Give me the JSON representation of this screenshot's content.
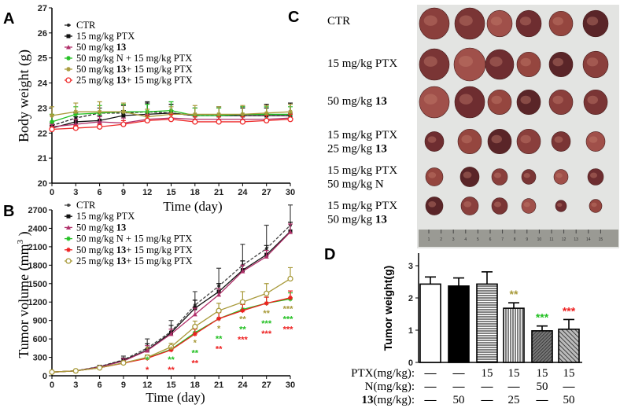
{
  "panels": {
    "a": "A",
    "b": "B",
    "c": "C",
    "d": "D"
  },
  "chart_data": [
    {
      "id": "A",
      "type": "line",
      "xlabel": "Time (day)",
      "ylabel": "Body weight (g)",
      "x": [
        0,
        3,
        6,
        9,
        12,
        15,
        18,
        21,
        24,
        27,
        30
      ],
      "xlim": [
        0,
        30
      ],
      "ylim": [
        20,
        27
      ],
      "yticks": [
        20,
        21,
        22,
        23,
        24,
        25,
        26,
        27
      ],
      "legend_position": "top-left",
      "series": [
        {
          "name": "CTR",
          "color": "#222222",
          "dash": true,
          "marker": "dot",
          "values": [
            22.3,
            22.6,
            22.8,
            22.8,
            22.85,
            22.8,
            22.7,
            22.7,
            22.7,
            22.7,
            22.7
          ],
          "error": [
            0.1,
            0.2,
            0.2,
            0.3,
            0.4,
            0.35,
            0.3,
            0.35,
            0.35,
            0.45,
            0.5
          ]
        },
        {
          "name": "15 mg/kg PTX",
          "color": "#111111",
          "marker": "square",
          "values": [
            22.2,
            22.45,
            22.5,
            22.7,
            22.75,
            22.8,
            22.7,
            22.7,
            22.7,
            22.7,
            22.7
          ],
          "error": [
            0.1,
            0.2,
            0.2,
            0.2,
            0.45,
            0.35,
            0.3,
            0.3,
            0.3,
            0.3,
            0.5
          ]
        },
        {
          "name_prefix": "50 mg/kg ",
          "name_bold": "13",
          "name_suffix": "",
          "color": "#b0306a",
          "marker": "triangle",
          "values": [
            22.25,
            22.35,
            22.45,
            22.4,
            22.55,
            22.6,
            22.55,
            22.55,
            22.55,
            22.55,
            22.6
          ],
          "error": [
            0.1,
            0.2,
            0.2,
            0.2,
            0.2,
            0.2,
            0.2,
            0.2,
            0.2,
            0.2,
            0.2
          ]
        },
        {
          "name": "50 mg/kg N + 15 mg/kg PTX",
          "color": "#22c022",
          "marker": "star",
          "values": [
            22.45,
            22.75,
            22.8,
            22.85,
            22.85,
            22.9,
            22.7,
            22.7,
            22.75,
            22.75,
            22.75
          ],
          "error": [
            0.3,
            0.3,
            0.3,
            0.3,
            0.3,
            0.35,
            0.3,
            0.3,
            0.3,
            0.3,
            0.3
          ]
        },
        {
          "name_prefix": "50 mg/kg ",
          "name_bold": "13",
          "name_suffix": "+ 15 mg/kg PTX",
          "color": "#a89a3a",
          "marker": "star",
          "values": [
            22.7,
            22.85,
            22.85,
            22.85,
            22.65,
            22.75,
            22.75,
            22.75,
            22.75,
            22.8,
            22.85
          ],
          "error": [
            0.35,
            0.35,
            0.4,
            0.35,
            0.3,
            0.3,
            0.35,
            0.3,
            0.35,
            0.3,
            0.3
          ]
        },
        {
          "name_prefix": "25 mg/kg ",
          "name_bold": "13",
          "name_suffix": "+ 15 mg/kg PTX",
          "color": "#ee2a2a",
          "marker": "circle",
          "values": [
            22.15,
            22.2,
            22.25,
            22.35,
            22.5,
            22.55,
            22.45,
            22.45,
            22.45,
            22.5,
            22.55
          ],
          "error": [
            0.1,
            0.1,
            0.1,
            0.15,
            0.2,
            0.2,
            0.2,
            0.2,
            0.2,
            0.2,
            0.2
          ]
        }
      ]
    },
    {
      "id": "B",
      "type": "line",
      "xlabel": "Time (day)",
      "ylabel": "Tumor volume (mm",
      "ylabel_sup": "3",
      "ylabel_end": ")",
      "x": [
        0,
        3,
        6,
        9,
        12,
        15,
        18,
        21,
        24,
        27,
        30
      ],
      "xlim": [
        0,
        30
      ],
      "ylim": [
        0,
        2700
      ],
      "yticks": [
        0,
        300,
        600,
        900,
        1200,
        1500,
        1800,
        2100,
        2400,
        2700
      ],
      "legend_position": "top-left",
      "series": [
        {
          "name": "CTR",
          "color": "#444444",
          "dash": true,
          "marker": "dot",
          "values": [
            60,
            80,
            150,
            260,
            450,
            720,
            1150,
            1460,
            1800,
            2070,
            2450
          ],
          "error": [
            0,
            0,
            20,
            60,
            150,
            180,
            220,
            290,
            340,
            380,
            330
          ]
        },
        {
          "name": "15 mg/kg PTX",
          "color": "#111111",
          "marker": "square",
          "values": [
            60,
            80,
            145,
            250,
            420,
            700,
            1100,
            1370,
            1720,
            1970,
            2350
          ],
          "error": [
            0,
            0,
            20,
            40,
            100,
            120,
            130,
            130,
            150,
            150,
            150
          ]
        },
        {
          "name_prefix": "50 mg/kg ",
          "name_bold": "13",
          "name_suffix": "",
          "color": "#b0306a",
          "marker": "triangle",
          "values": [
            60,
            80,
            140,
            240,
            410,
            680,
            1000,
            1320,
            1700,
            1940,
            2340
          ],
          "error": [
            0,
            0,
            20,
            40,
            80,
            80,
            100,
            100,
            100,
            100,
            130
          ]
        },
        {
          "name": "50 mg/kg N + 15 mg/kg PTX",
          "color": "#22c022",
          "marker": "star",
          "values": [
            60,
            80,
            130,
            210,
            290,
            430,
            700,
            930,
            1080,
            1180,
            1250
          ],
          "error": [
            0,
            0,
            15,
            30,
            40,
            50,
            80,
            100,
            100,
            100,
            100
          ]
        },
        {
          "name_prefix": "50 mg/kg ",
          "name_bold": "13",
          "name_suffix": "+ 15 mg/kg PTX",
          "color": "#ee2020",
          "marker": "star",
          "values": [
            60,
            80,
            130,
            205,
            285,
            420,
            680,
            930,
            1060,
            1180,
            1270
          ],
          "error": [
            0,
            0,
            15,
            30,
            40,
            50,
            80,
            100,
            100,
            100,
            110
          ]
        },
        {
          "name_prefix": "25 mg/kg ",
          "name_bold": "13",
          "name_suffix": "+ 15 mg/kg PTX",
          "color": "#a89a3a",
          "marker": "circle",
          "values": [
            60,
            80,
            130,
            210,
            300,
            470,
            800,
            1060,
            1200,
            1340,
            1580
          ],
          "error": [
            0,
            0,
            15,
            30,
            40,
            60,
            90,
            120,
            170,
            160,
            180
          ]
        }
      ],
      "significance": [
        {
          "x": 12,
          "marks": [
            {
              "text": "*",
              "color": "#a89a3a"
            },
            {
              "text": "*",
              "color": "#22c022"
            },
            {
              "text": "*",
              "color": "#ee2020"
            }
          ]
        },
        {
          "x": 15,
          "marks": [
            {
              "text": "*",
              "color": "#a89a3a"
            },
            {
              "text": "**",
              "color": "#22c022"
            },
            {
              "text": "**",
              "color": "#ee2020"
            }
          ]
        },
        {
          "x": 18,
          "marks": [
            {
              "text": "*",
              "color": "#a89a3a"
            },
            {
              "text": "**",
              "color": "#22c022"
            },
            {
              "text": "**",
              "color": "#ee2020"
            }
          ]
        },
        {
          "x": 21,
          "marks": [
            {
              "text": "*",
              "color": "#a89a3a"
            },
            {
              "text": "**",
              "color": "#22c022"
            },
            {
              "text": "**",
              "color": "#ee2020"
            }
          ]
        },
        {
          "x": 24,
          "marks": [
            {
              "text": "**",
              "color": "#a89a3a"
            },
            {
              "text": "**",
              "color": "#22c022"
            },
            {
              "text": "***",
              "color": "#ee2020"
            }
          ]
        },
        {
          "x": 27,
          "marks": [
            {
              "text": "**",
              "color": "#a89a3a"
            },
            {
              "text": "***",
              "color": "#22c022"
            },
            {
              "text": "***",
              "color": "#ee2020"
            }
          ]
        },
        {
          "x": 30,
          "marks": [
            {
              "text": "***",
              "color": "#a89a3a"
            },
            {
              "text": "***",
              "color": "#22c022"
            },
            {
              "text": "***",
              "color": "#ee2020"
            }
          ]
        }
      ]
    },
    {
      "id": "D",
      "type": "bar",
      "ylabel": "Tumor weight(g)",
      "ylim": [
        0,
        3.4
      ],
      "yticks": [
        0,
        1,
        2,
        3
      ],
      "values": [
        2.43,
        2.37,
        2.43,
        1.68,
        0.98,
        1.03
      ],
      "error": [
        0.22,
        0.25,
        0.38,
        0.17,
        0.15,
        0.3
      ],
      "fills": [
        "white",
        "black",
        "hlines",
        "vlines",
        "diag-dense",
        "diag"
      ],
      "significance": [
        null,
        null,
        null,
        {
          "text": "**",
          "color": "#a89a3a"
        },
        {
          "text": "***",
          "color": "#22c022"
        },
        {
          "text": "***",
          "color": "#ee2020"
        }
      ],
      "dose_table": [
        {
          "label": "PTX(mg/kg):",
          "values": [
            "—",
            "—",
            "15",
            "15",
            "15",
            "15"
          ]
        },
        {
          "label": "N(mg/kg):",
          "values": [
            "—",
            "—",
            "—",
            "—",
            "50",
            "—"
          ]
        },
        {
          "label_bold": "13",
          "label": "(mg/kg):",
          "values": [
            "—",
            "50",
            "—",
            "25",
            "—",
            "50"
          ]
        }
      ]
    }
  ],
  "photo": {
    "rows": [
      {
        "lines": [
          {
            "text": "CTR"
          }
        ]
      },
      {
        "lines": [
          {
            "text": "15 mg/kg PTX"
          }
        ]
      },
      {
        "lines": [
          {
            "text": "50 mg/kg ",
            "bold": "13"
          }
        ]
      },
      {
        "lines": [
          {
            "text": "15 mg/kg PTX"
          },
          {
            "text": "25 mg/kg ",
            "bold": "13"
          }
        ]
      },
      {
        "lines": [
          {
            "text": "15 mg/kg PTX"
          },
          {
            "text": "50 mg/kg N"
          }
        ]
      },
      {
        "lines": [
          {
            "text": "15 mg/kg PTX"
          },
          {
            "text": "50 mg/kg ",
            "bold": "13"
          }
        ]
      }
    ],
    "ruler_marks": [
      "1",
      "2",
      "3",
      "4",
      "5",
      "6",
      "7",
      "8",
      "9",
      "10",
      "11",
      "12",
      "13",
      "14",
      "15"
    ]
  }
}
